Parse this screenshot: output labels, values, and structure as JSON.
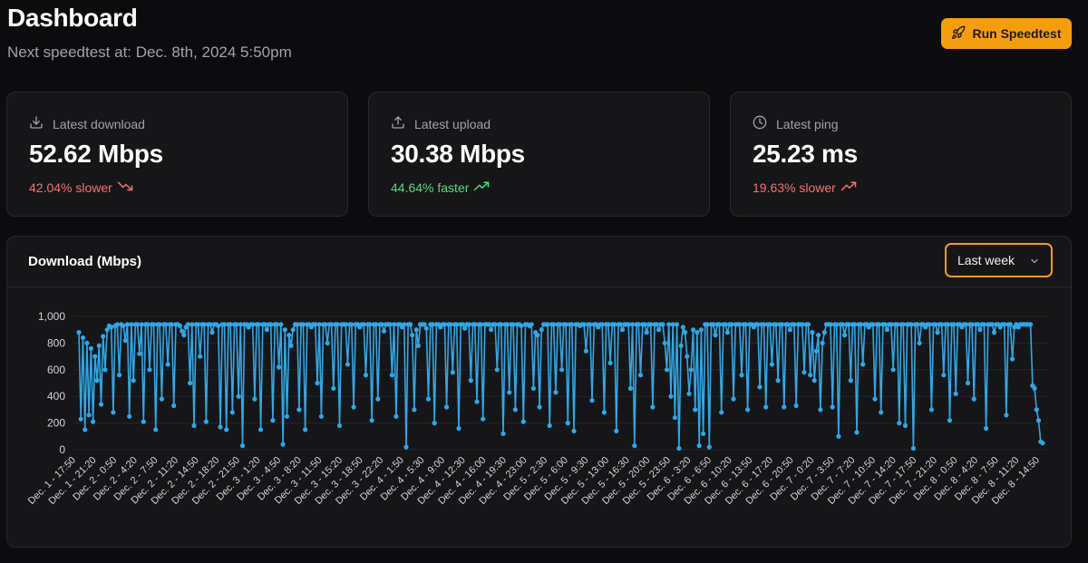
{
  "header": {
    "title": "Dashboard",
    "subtitle": "Next speedtest at: Dec. 8th, 2024 5:50pm",
    "run_button": "Run Speedtest",
    "run_icon": "rocket-icon"
  },
  "stats": [
    {
      "label": "Latest download",
      "value": "52.62 Mbps",
      "delta": "42.04% slower",
      "trend": "down",
      "icon": "download-icon"
    },
    {
      "label": "Latest upload",
      "value": "30.38 Mbps",
      "delta": "44.64% faster",
      "trend": "up",
      "icon": "upload-icon"
    },
    {
      "label": "Latest ping",
      "value": "25.23 ms",
      "delta": "19.63% slower",
      "trend": "up",
      "icon": "clock-icon"
    }
  ],
  "colors": {
    "accent": "#f59e0b",
    "series": "#2ea8e6",
    "negative": "#f87171",
    "positive": "#4ade80"
  },
  "chart": {
    "title": "Download (Mbps)",
    "range_select": "Last week"
  },
  "chart_data": {
    "type": "line",
    "ylim": [
      0,
      1000
    ],
    "yticks": [
      "0",
      "200",
      "400",
      "600",
      "800",
      "1,000"
    ],
    "grid": true,
    "xtick_labels": [
      "Dec. 1 - 17:50",
      "Dec. 1 - 21:20",
      "Dec. 2 - 0:50",
      "Dec. 2 - 4:20",
      "Dec. 2 - 7:50",
      "Dec. 2 - 11:20",
      "Dec. 2 - 14:50",
      "Dec. 2 - 18:20",
      "Dec. 2 - 21:50",
      "Dec. 3 - 1:20",
      "Dec. 3 - 4:50",
      "Dec. 3 - 8:20",
      "Dec. 3 - 11:50",
      "Dec. 3 - 15:20",
      "Dec. 3 - 18:50",
      "Dec. 3 - 22:20",
      "Dec. 4 - 1:50",
      "Dec. 4 - 5:30",
      "Dec. 4 - 9:00",
      "Dec. 4 - 12:30",
      "Dec. 4 - 16:00",
      "Dec. 4 - 19:30",
      "Dec. 4 - 23:00",
      "Dec. 5 - 2:30",
      "Dec. 5 - 6:00",
      "Dec. 5 - 9:30",
      "Dec. 5 - 13:00",
      "Dec. 5 - 16:30",
      "Dec. 5 - 20:00",
      "Dec. 5 - 23:50",
      "Dec. 6 - 3:20",
      "Dec. 6 - 6:50",
      "Dec. 6 - 10:20",
      "Dec. 6 - 13:50",
      "Dec. 6 - 17:20",
      "Dec. 6 - 20:50",
      "Dec. 7 - 0:20",
      "Dec. 7 - 3:50",
      "Dec. 7 - 7:20",
      "Dec. 7 - 10:50",
      "Dec. 7 - 14:20",
      "Dec. 7 - 17:50",
      "Dec. 7 - 21:20",
      "Dec. 8 - 0:50",
      "Dec. 8 - 4:20",
      "Dec. 8 - 7:50",
      "Dec. 8 - 11:20",
      "Dec. 8 - 14:50"
    ],
    "series": [
      {
        "values": [
          880,
          230,
          840,
          150,
          800,
          260,
          760,
          210,
          700,
          520,
          780,
          340,
          850,
          600,
          900,
          930,
          920,
          280,
          930,
          940,
          560,
          940,
          930,
          820,
          940,
          250,
          940,
          520,
          940,
          940,
          720,
          940,
          210,
          940,
          940,
          600,
          940,
          940,
          150,
          940,
          940,
          380,
          940,
          940,
          640,
          940,
          940,
          330,
          940,
          940,
          930,
          890,
          860,
          920,
          940,
          500,
          940,
          180,
          940,
          940,
          700,
          940,
          940,
          210,
          940,
          940,
          880,
          940,
          940,
          930,
          170,
          940,
          940,
          150,
          940,
          940,
          280,
          940,
          940,
          400,
          940,
          30,
          940,
          940,
          920,
          940,
          940,
          380,
          940,
          940,
          150,
          940,
          940,
          900,
          940,
          940,
          220,
          940,
          940,
          620,
          940,
          40,
          900,
          250,
          860,
          780,
          900,
          940,
          940,
          300,
          940,
          940,
          150,
          940,
          940,
          920,
          940,
          940,
          500,
          940,
          250,
          940,
          940,
          800,
          940,
          940,
          460,
          940,
          940,
          180,
          940,
          940,
          940,
          640,
          940,
          940,
          320,
          940,
          940,
          920,
          940,
          940,
          560,
          940,
          940,
          220,
          940,
          940,
          380,
          940,
          940,
          890,
          940,
          940,
          940,
          560,
          940,
          250,
          940,
          940,
          920,
          940,
          20,
          940,
          940,
          860,
          300,
          900,
          780,
          940,
          940,
          940,
          910,
          380,
          940,
          940,
          200,
          940,
          940,
          920,
          940,
          940,
          320,
          940,
          940,
          580,
          940,
          940,
          160,
          940,
          940,
          910,
          940,
          940,
          520,
          940,
          940,
          360,
          940,
          940,
          230,
          940,
          940,
          940,
          900,
          940,
          940,
          600,
          940,
          940,
          120,
          940,
          940,
          430,
          940,
          940,
          300,
          940,
          940,
          930,
          210,
          940,
          940,
          930,
          940,
          460,
          880,
          860,
          320,
          900,
          940,
          940,
          940,
          180,
          940,
          940,
          430,
          940,
          940,
          600,
          940,
          940,
          200,
          940,
          940,
          140,
          940,
          940,
          930,
          940,
          940,
          740,
          940,
          940,
          370,
          940,
          940,
          920,
          940,
          940,
          280,
          940,
          940,
          650,
          940,
          940,
          140,
          940,
          940,
          900,
          940,
          940,
          940,
          460,
          940,
          30,
          940,
          940,
          560,
          940,
          940,
          880,
          940,
          940,
          320,
          940,
          940,
          900,
          940,
          940,
          800,
          600,
          940,
          400,
          940,
          240,
          940,
          10,
          780,
          920,
          880,
          700,
          420,
          600,
          900,
          300,
          880,
          30,
          900,
          120,
          940,
          940,
          20,
          940,
          940,
          860,
          940,
          940,
          280,
          940,
          940,
          880,
          940,
          940,
          380,
          940,
          940,
          940,
          560,
          940,
          940,
          300,
          940,
          940,
          920,
          940,
          940,
          470,
          940,
          940,
          320,
          940,
          940,
          640,
          940,
          940,
          520,
          940,
          940,
          320,
          940,
          940,
          900,
          940,
          940,
          330,
          940,
          940,
          940,
          580,
          940,
          940,
          560,
          880,
          520,
          740,
          860,
          300,
          800,
          880,
          940,
          940,
          940,
          320,
          940,
          940,
          100,
          940,
          940,
          860,
          940,
          940,
          520,
          940,
          940,
          130,
          940,
          940,
          640,
          940,
          940,
          920,
          940,
          940,
          380,
          940,
          940,
          280,
          940,
          940,
          900,
          940,
          940,
          600,
          940,
          940,
          200,
          940,
          940,
          180,
          940,
          940,
          940,
          10,
          940,
          940,
          800,
          940,
          940,
          920,
          940,
          940,
          300,
          940,
          940,
          880,
          940,
          940,
          560,
          940,
          940,
          220,
          940,
          940,
          420,
          940,
          940,
          920,
          940,
          940,
          500,
          940,
          940,
          380,
          940,
          940,
          900,
          940,
          940,
          160,
          940,
          940,
          940,
          880,
          940,
          940,
          920,
          940,
          940,
          260,
          940,
          940,
          680,
          920,
          940,
          920,
          940,
          940,
          940,
          940,
          940,
          940,
          480,
          460,
          300,
          220,
          60,
          50
        ]
      }
    ]
  }
}
